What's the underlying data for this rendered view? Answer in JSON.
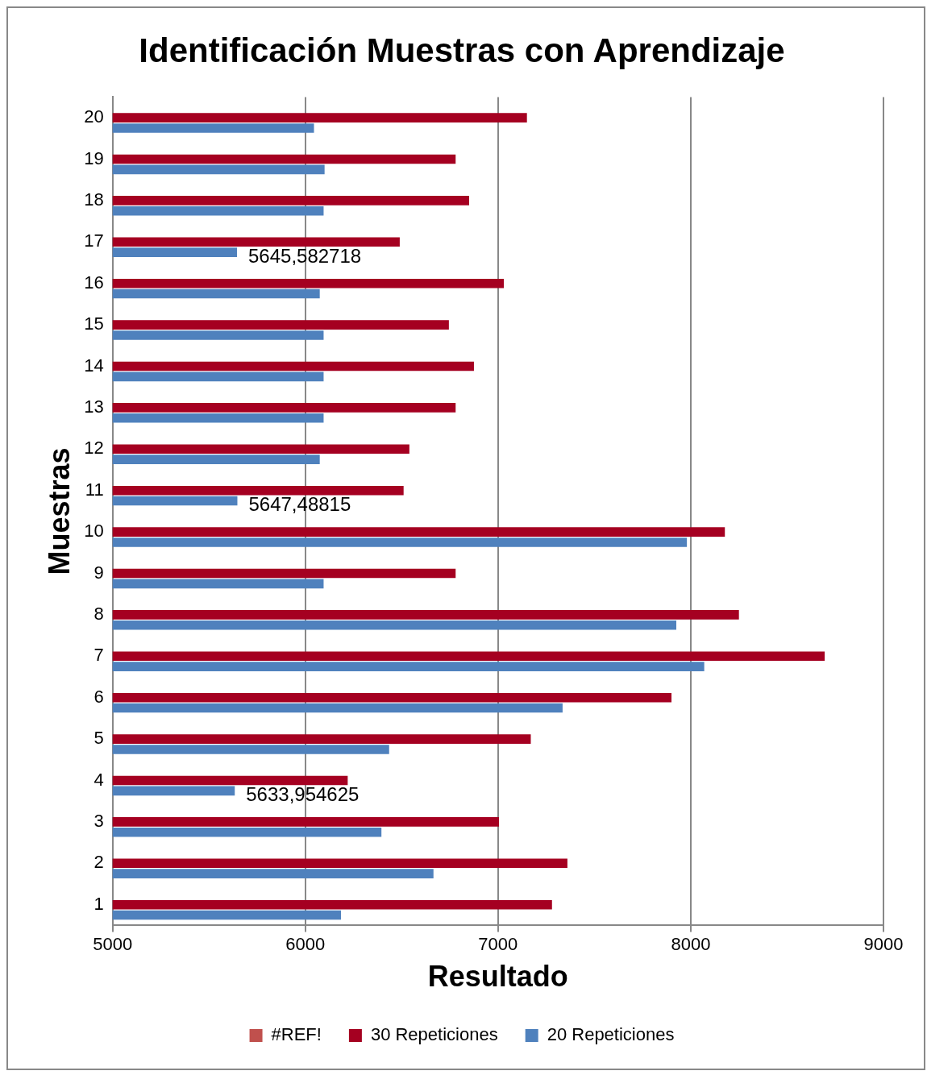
{
  "chart_data": {
    "type": "bar",
    "orientation": "horizontal",
    "title": "Identificación Muestras con Aprendizaje",
    "xlabel": "Resultado",
    "ylabel": "Muestras",
    "categories": [
      "20",
      "19",
      "18",
      "17",
      "16",
      "15",
      "14",
      "13",
      "12",
      "11",
      "10",
      "9",
      "8",
      "7",
      "6",
      "5",
      "4",
      "3",
      "2",
      "1"
    ],
    "series": [
      {
        "name": "#REF!",
        "color": "#c0504d",
        "values": [
          null,
          null,
          null,
          null,
          null,
          null,
          null,
          null,
          null,
          null,
          null,
          null,
          null,
          null,
          null,
          null,
          null,
          null,
          null,
          null
        ]
      },
      {
        "name": "30 Repeticiones",
        "color": "#a50021",
        "values": [
          7150,
          6780,
          6850,
          6490,
          7030,
          6745,
          6875,
          6780,
          6540,
          6510,
          8177,
          6780,
          8250,
          8695,
          7900,
          7170,
          6220,
          7005,
          7360,
          7280
        ]
      },
      {
        "name": "20 Repeticiones",
        "color": "#4f81bd",
        "values": [
          6045,
          6100,
          6095,
          5645.582718,
          6075,
          6095,
          6095,
          6095,
          6075,
          5647.48815,
          7980,
          6095,
          7925,
          8070,
          7335,
          6435,
          5633.954625,
          6395,
          6665,
          6185
        ],
        "value_labels": [
          null,
          null,
          null,
          "5645,582718",
          null,
          null,
          null,
          null,
          null,
          "5647,48815",
          null,
          null,
          null,
          null,
          null,
          null,
          "5633,954625",
          null,
          null,
          null
        ]
      }
    ],
    "xlim": [
      5000,
      9000
    ],
    "xticks": [
      5000,
      6000,
      7000,
      8000,
      9000
    ],
    "grid": "x",
    "legend": "bottom"
  }
}
